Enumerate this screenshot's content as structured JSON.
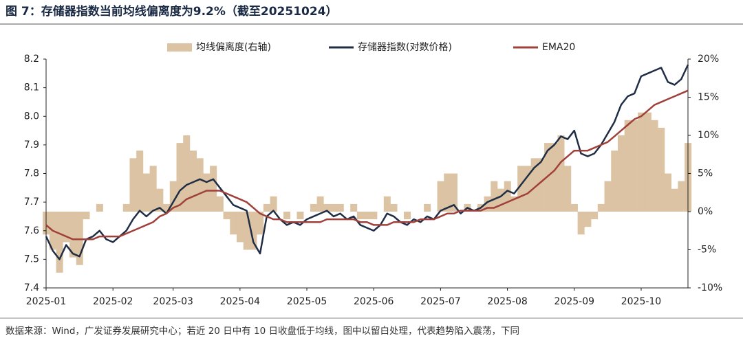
{
  "chart_data": {
    "type": "combo",
    "title": "图 7：存储器指数当前均线偏离度为9.2%（截至20251024）",
    "note": "数据来源：Wind，广发证券发展研究中心；若近 20 日中有 10 日收盘低于均线，图中以留白处理，代表趋势陷入震荡，下同",
    "categories": [
      "2025-01",
      null,
      null,
      null,
      null,
      null,
      null,
      null,
      null,
      null,
      "2025-02",
      null,
      null,
      null,
      null,
      null,
      null,
      null,
      null,
      "2025-03",
      null,
      null,
      null,
      null,
      null,
      null,
      null,
      null,
      null,
      "2025-04",
      null,
      null,
      null,
      null,
      null,
      null,
      null,
      null,
      null,
      "2025-05",
      null,
      null,
      null,
      null,
      null,
      null,
      null,
      null,
      null,
      "2025-06",
      null,
      null,
      null,
      null,
      null,
      null,
      null,
      null,
      null,
      "2025-07",
      null,
      null,
      null,
      null,
      null,
      null,
      null,
      null,
      null,
      "2025-08",
      null,
      null,
      null,
      null,
      null,
      null,
      null,
      null,
      null,
      "2025-09",
      null,
      null,
      null,
      null,
      null,
      null,
      null,
      null,
      null,
      "2025-10",
      null,
      null,
      null,
      null,
      null,
      null,
      null
    ],
    "series": [
      {
        "name": "均线偏离度(右轴)",
        "type": "area",
        "axis": "y2",
        "color": "#dcc3a3",
        "values": [
          -3,
          -5,
          -8,
          -4,
          -6,
          -7,
          -1,
          0,
          1,
          0,
          0,
          0,
          1,
          7,
          8,
          5,
          6,
          3,
          1,
          4,
          9,
          10,
          8,
          7,
          5,
          6,
          2,
          -1,
          -3,
          -4,
          -5,
          -5,
          -3,
          1,
          2,
          0,
          -1,
          0,
          -1,
          0,
          1,
          2,
          1,
          1,
          1,
          0,
          1,
          -1,
          -1,
          -1,
          0,
          2,
          1,
          0,
          -1,
          0,
          0,
          1,
          0,
          4,
          5,
          5,
          0,
          1,
          0,
          1,
          2,
          4,
          3,
          4,
          2,
          6,
          6,
          7,
          7,
          9,
          9,
          10,
          6,
          1,
          -3,
          -2,
          -1,
          1,
          4,
          8,
          10,
          12,
          12,
          13,
          13,
          12,
          11,
          5,
          3,
          4,
          9
        ]
      },
      {
        "name": "存储器指数(对数价格)",
        "type": "line",
        "color": "#1f2d45",
        "values": [
          7.58,
          7.53,
          7.5,
          7.55,
          7.52,
          7.51,
          7.57,
          7.58,
          7.6,
          7.57,
          7.56,
          7.58,
          7.6,
          7.64,
          7.67,
          7.65,
          7.67,
          7.68,
          7.66,
          7.7,
          7.74,
          7.76,
          7.77,
          7.78,
          7.77,
          7.78,
          7.75,
          7.72,
          7.69,
          7.68,
          7.67,
          7.56,
          7.52,
          7.65,
          7.67,
          7.64,
          7.62,
          7.63,
          7.62,
          7.64,
          7.65,
          7.66,
          7.67,
          7.65,
          7.66,
          7.64,
          7.65,
          7.62,
          7.61,
          7.6,
          7.62,
          7.66,
          7.65,
          7.63,
          7.62,
          7.64,
          7.63,
          7.65,
          7.64,
          7.67,
          7.68,
          7.69,
          7.66,
          7.68,
          7.67,
          7.68,
          7.7,
          7.71,
          7.72,
          7.74,
          7.73,
          7.76,
          7.79,
          7.82,
          7.84,
          7.88,
          7.9,
          7.93,
          7.92,
          7.95,
          7.87,
          7.86,
          7.87,
          7.9,
          7.94,
          7.98,
          8.04,
          8.07,
          8.08,
          8.14,
          8.15,
          8.16,
          8.17,
          8.12,
          8.11,
          8.13,
          8.18
        ]
      },
      {
        "name": "EMA20",
        "type": "line",
        "color": "#a0403a",
        "values": [
          7.62,
          7.6,
          7.59,
          7.58,
          7.57,
          7.57,
          7.57,
          7.57,
          7.58,
          7.58,
          7.58,
          7.58,
          7.59,
          7.6,
          7.61,
          7.62,
          7.63,
          7.65,
          7.66,
          7.68,
          7.69,
          7.71,
          7.72,
          7.73,
          7.74,
          7.74,
          7.74,
          7.73,
          7.72,
          7.71,
          7.7,
          7.68,
          7.66,
          7.65,
          7.64,
          7.64,
          7.63,
          7.63,
          7.63,
          7.63,
          7.63,
          7.63,
          7.64,
          7.64,
          7.64,
          7.64,
          7.64,
          7.63,
          7.63,
          7.62,
          7.62,
          7.62,
          7.63,
          7.63,
          7.63,
          7.63,
          7.64,
          7.64,
          7.64,
          7.65,
          7.66,
          7.66,
          7.67,
          7.67,
          7.67,
          7.67,
          7.68,
          7.68,
          7.69,
          7.7,
          7.71,
          7.72,
          7.73,
          7.75,
          7.77,
          7.79,
          7.81,
          7.84,
          7.86,
          7.88,
          7.88,
          7.88,
          7.89,
          7.9,
          7.91,
          7.93,
          7.95,
          7.97,
          7.99,
          8.0,
          8.02,
          8.04,
          8.05,
          8.06,
          8.07,
          8.08,
          8.09
        ]
      }
    ],
    "ylim": [
      7.4,
      8.2
    ],
    "yticks": [
      7.4,
      7.5,
      7.6,
      7.7,
      7.8,
      7.9,
      {
        "value": 8,
        "label": "8.0"
      },
      8.1,
      8.2
    ],
    "y2lim": [
      -10,
      20
    ],
    "y2ticks": [
      {
        "value": -10,
        "label": "-10%"
      },
      {
        "value": -5,
        "label": "-5%"
      },
      {
        "value": 0,
        "label": "0%"
      },
      {
        "value": 5,
        "label": "5%"
      },
      {
        "value": 10,
        "label": "10%"
      },
      {
        "value": 15,
        "label": "15%"
      },
      {
        "value": 20,
        "label": "20%"
      }
    ],
    "legend": "top"
  }
}
